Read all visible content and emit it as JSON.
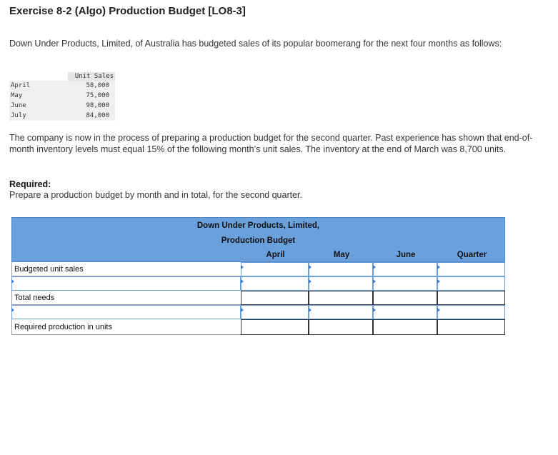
{
  "header": {
    "title": "Exercise 8-2 (Algo) Production Budget [LO8-3]"
  },
  "intro": "Down Under Products, Limited, of Australia has budgeted sales of its popular boomerang for the next four months as follows:",
  "unit_sales": {
    "column_header": "Unit Sales",
    "rows": [
      {
        "month": "April",
        "value": "58,000"
      },
      {
        "month": "May",
        "value": "75,000"
      },
      {
        "month": "June",
        "value": "98,000"
      },
      {
        "month": "July",
        "value": "84,000"
      }
    ]
  },
  "context": "The company is now in the process of preparing a production budget for the second quarter. Past experience has shown that end-of-month inventory levels must equal 15% of the following month’s unit sales. The inventory at the end of March was 8,700 units.",
  "required": {
    "heading": "Required:",
    "text": "Prepare a production budget by month and in total, for the second quarter."
  },
  "budget": {
    "company": "Down Under Products, Limited,",
    "title": "Production Budget",
    "columns": [
      "April",
      "May",
      "June",
      "Quarter"
    ],
    "row_labels": {
      "budgeted_unit_sales": "Budgeted unit sales",
      "blank_1": "",
      "total_needs": "Total needs",
      "blank_2": "",
      "required_production": "Required production in units"
    },
    "colors": {
      "header_bg": "#6aa1dd",
      "input_border": "#6aa1dd"
    }
  }
}
